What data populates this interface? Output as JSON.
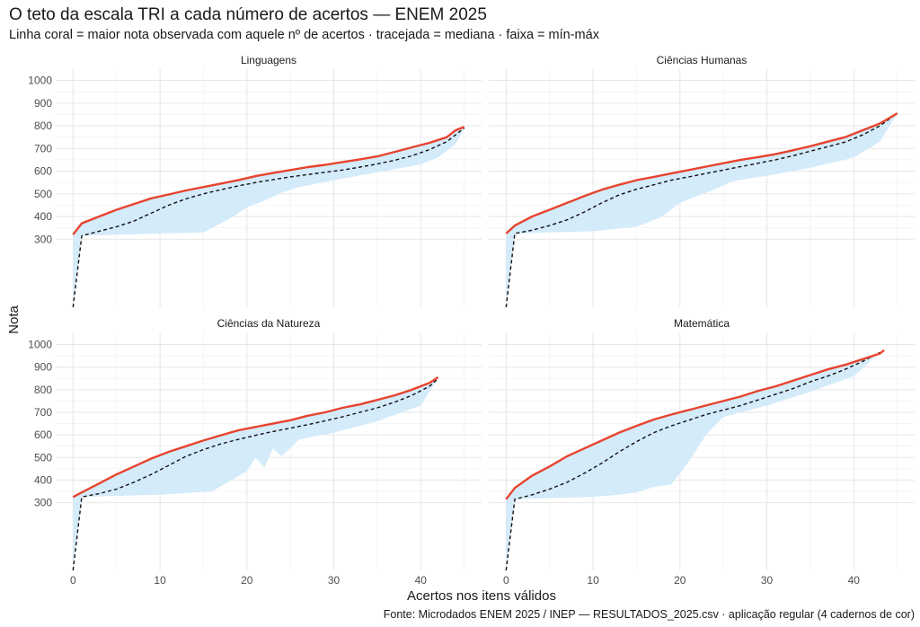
{
  "title": "O teto da escala TRI a cada número de acertos — ENEM 2025",
  "subtitle": "Linha coral = maior nota observada com aquele nº de acertos · tracejada = mediana · faixa = mín-máx",
  "caption": "Fonte: Microdados ENEM 2025 / INEP — RESULTADOS_2025.csv · aplicação regular (4 cadernos de cor)",
  "colors": {
    "max_line": "#e8432e",
    "ribbon": "#d4ebfa",
    "median": "#111111",
    "grid": "#e6e6e6"
  },
  "chart_data": {
    "type": "line",
    "xlabel": "Acertos nos itens válidos",
    "ylabel": "Nota",
    "xlim": [
      -2,
      47
    ],
    "ylim": [
      0,
      1030
    ],
    "x_ticks": [
      0,
      10,
      20,
      30,
      40
    ],
    "y_ticks": [
      300,
      400,
      500,
      600,
      700,
      800,
      900,
      1000
    ],
    "panels": [
      {
        "name": "Linguagens",
        "max": [
          [
            0,
            320
          ],
          [
            1,
            370
          ],
          [
            3,
            400
          ],
          [
            5,
            430
          ],
          [
            7,
            455
          ],
          [
            9,
            480
          ],
          [
            11,
            497
          ],
          [
            13,
            515
          ],
          [
            15,
            530
          ],
          [
            17,
            545
          ],
          [
            19,
            560
          ],
          [
            21,
            578
          ],
          [
            23,
            592
          ],
          [
            25,
            605
          ],
          [
            27,
            618
          ],
          [
            29,
            628
          ],
          [
            31,
            640
          ],
          [
            33,
            652
          ],
          [
            35,
            665
          ],
          [
            37,
            685
          ],
          [
            39,
            705
          ],
          [
            41,
            725
          ],
          [
            43,
            750
          ],
          [
            44,
            780
          ],
          [
            45,
            795
          ]
        ],
        "median": [
          [
            0,
            0
          ],
          [
            1,
            315
          ],
          [
            3,
            335
          ],
          [
            5,
            355
          ],
          [
            7,
            380
          ],
          [
            9,
            415
          ],
          [
            11,
            450
          ],
          [
            13,
            478
          ],
          [
            15,
            500
          ],
          [
            17,
            518
          ],
          [
            19,
            535
          ],
          [
            21,
            550
          ],
          [
            23,
            562
          ],
          [
            25,
            575
          ],
          [
            27,
            585
          ],
          [
            29,
            595
          ],
          [
            31,
            605
          ],
          [
            33,
            618
          ],
          [
            35,
            632
          ],
          [
            37,
            648
          ],
          [
            39,
            668
          ],
          [
            41,
            695
          ],
          [
            43,
            730
          ],
          [
            45,
            790
          ]
        ],
        "min": [
          [
            0,
            0
          ],
          [
            1,
            315
          ],
          [
            5,
            320
          ],
          [
            10,
            325
          ],
          [
            15,
            330
          ],
          [
            18,
            390
          ],
          [
            20,
            440
          ],
          [
            22,
            470
          ],
          [
            24,
            505
          ],
          [
            26,
            530
          ],
          [
            30,
            560
          ],
          [
            35,
            595
          ],
          [
            40,
            630
          ],
          [
            42,
            660
          ],
          [
            44,
            720
          ],
          [
            45,
            790
          ]
        ]
      },
      {
        "name": "Ciências Humanas",
        "max": [
          [
            0,
            325
          ],
          [
            1,
            360
          ],
          [
            3,
            400
          ],
          [
            5,
            430
          ],
          [
            7,
            460
          ],
          [
            9,
            490
          ],
          [
            11,
            518
          ],
          [
            13,
            540
          ],
          [
            15,
            560
          ],
          [
            17,
            575
          ],
          [
            19,
            590
          ],
          [
            21,
            605
          ],
          [
            23,
            620
          ],
          [
            25,
            635
          ],
          [
            27,
            650
          ],
          [
            29,
            662
          ],
          [
            31,
            675
          ],
          [
            33,
            692
          ],
          [
            35,
            710
          ],
          [
            37,
            730
          ],
          [
            39,
            750
          ],
          [
            41,
            780
          ],
          [
            43,
            810
          ],
          [
            45,
            855
          ]
        ],
        "median": [
          [
            0,
            0
          ],
          [
            1,
            325
          ],
          [
            3,
            340
          ],
          [
            5,
            360
          ],
          [
            7,
            385
          ],
          [
            9,
            420
          ],
          [
            11,
            460
          ],
          [
            13,
            495
          ],
          [
            15,
            520
          ],
          [
            17,
            540
          ],
          [
            19,
            560
          ],
          [
            21,
            575
          ],
          [
            23,
            590
          ],
          [
            25,
            605
          ],
          [
            27,
            620
          ],
          [
            29,
            635
          ],
          [
            31,
            650
          ],
          [
            33,
            668
          ],
          [
            35,
            688
          ],
          [
            37,
            708
          ],
          [
            39,
            728
          ],
          [
            41,
            760
          ],
          [
            43,
            800
          ],
          [
            45,
            855
          ]
        ],
        "min": [
          [
            0,
            0
          ],
          [
            1,
            325
          ],
          [
            5,
            330
          ],
          [
            10,
            335
          ],
          [
            15,
            355
          ],
          [
            18,
            400
          ],
          [
            20,
            460
          ],
          [
            22,
            490
          ],
          [
            24,
            520
          ],
          [
            26,
            555
          ],
          [
            30,
            580
          ],
          [
            35,
            615
          ],
          [
            40,
            660
          ],
          [
            43,
            730
          ],
          [
            45,
            855
          ]
        ]
      },
      {
        "name": "Ciências da Natureza",
        "max": [
          [
            0,
            325
          ],
          [
            1,
            345
          ],
          [
            3,
            385
          ],
          [
            5,
            425
          ],
          [
            7,
            460
          ],
          [
            9,
            495
          ],
          [
            11,
            525
          ],
          [
            13,
            550
          ],
          [
            15,
            575
          ],
          [
            17,
            598
          ],
          [
            19,
            620
          ],
          [
            21,
            635
          ],
          [
            23,
            650
          ],
          [
            25,
            665
          ],
          [
            27,
            685
          ],
          [
            29,
            700
          ],
          [
            31,
            720
          ],
          [
            33,
            735
          ],
          [
            35,
            755
          ],
          [
            37,
            775
          ],
          [
            39,
            800
          ],
          [
            41,
            830
          ],
          [
            42,
            855
          ]
        ],
        "median": [
          [
            0,
            0
          ],
          [
            1,
            325
          ],
          [
            3,
            340
          ],
          [
            5,
            360
          ],
          [
            7,
            390
          ],
          [
            9,
            425
          ],
          [
            11,
            465
          ],
          [
            13,
            505
          ],
          [
            15,
            535
          ],
          [
            17,
            560
          ],
          [
            19,
            580
          ],
          [
            21,
            598
          ],
          [
            23,
            615
          ],
          [
            25,
            630
          ],
          [
            27,
            645
          ],
          [
            29,
            662
          ],
          [
            31,
            680
          ],
          [
            33,
            700
          ],
          [
            35,
            720
          ],
          [
            37,
            745
          ],
          [
            39,
            775
          ],
          [
            41,
            815
          ],
          [
            42,
            850
          ]
        ],
        "min": [
          [
            0,
            0
          ],
          [
            1,
            325
          ],
          [
            5,
            330
          ],
          [
            10,
            335
          ],
          [
            14,
            345
          ],
          [
            16,
            350
          ],
          [
            18,
            395
          ],
          [
            20,
            440
          ],
          [
            21,
            500
          ],
          [
            22,
            455
          ],
          [
            23,
            540
          ],
          [
            24,
            505
          ],
          [
            26,
            580
          ],
          [
            30,
            610
          ],
          [
            35,
            660
          ],
          [
            40,
            730
          ],
          [
            42,
            850
          ]
        ]
      },
      {
        "name": "Matemática",
        "max": [
          [
            0,
            315
          ],
          [
            1,
            365
          ],
          [
            3,
            420
          ],
          [
            5,
            460
          ],
          [
            7,
            505
          ],
          [
            9,
            540
          ],
          [
            11,
            575
          ],
          [
            13,
            610
          ],
          [
            15,
            640
          ],
          [
            17,
            668
          ],
          [
            19,
            690
          ],
          [
            21,
            710
          ],
          [
            23,
            730
          ],
          [
            25,
            750
          ],
          [
            27,
            770
          ],
          [
            29,
            795
          ],
          [
            31,
            815
          ],
          [
            33,
            840
          ],
          [
            35,
            865
          ],
          [
            37,
            890
          ],
          [
            39,
            910
          ],
          [
            41,
            935
          ],
          [
            43,
            960
          ],
          [
            43.5,
            975
          ]
        ],
        "median": [
          [
            0,
            0
          ],
          [
            1,
            315
          ],
          [
            3,
            335
          ],
          [
            5,
            360
          ],
          [
            7,
            390
          ],
          [
            9,
            430
          ],
          [
            11,
            475
          ],
          [
            13,
            525
          ],
          [
            15,
            570
          ],
          [
            17,
            610
          ],
          [
            19,
            640
          ],
          [
            21,
            665
          ],
          [
            23,
            690
          ],
          [
            25,
            710
          ],
          [
            27,
            730
          ],
          [
            29,
            755
          ],
          [
            31,
            780
          ],
          [
            33,
            805
          ],
          [
            35,
            835
          ],
          [
            37,
            860
          ],
          [
            39,
            890
          ],
          [
            41,
            925
          ],
          [
            43,
            965
          ]
        ],
        "min": [
          [
            0,
            0
          ],
          [
            1,
            315
          ],
          [
            5,
            320
          ],
          [
            10,
            325
          ],
          [
            13,
            335
          ],
          [
            15,
            345
          ],
          [
            17,
            370
          ],
          [
            19,
            380
          ],
          [
            21,
            480
          ],
          [
            23,
            600
          ],
          [
            25,
            680
          ],
          [
            27,
            700
          ],
          [
            30,
            730
          ],
          [
            35,
            790
          ],
          [
            40,
            860
          ],
          [
            43,
            965
          ]
        ]
      }
    ]
  }
}
